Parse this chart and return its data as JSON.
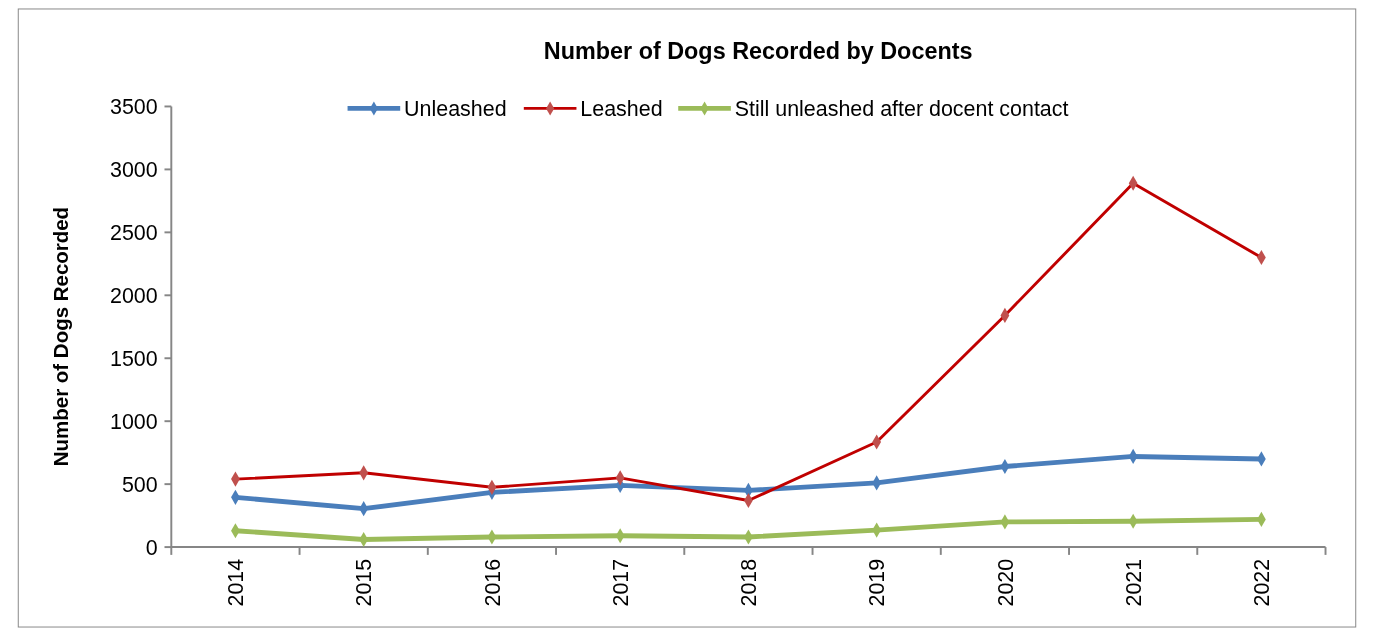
{
  "chart_data": {
    "type": "line",
    "title": "Number of Dogs Recorded by Docents",
    "ylabel": "Number of Dogs Recorded",
    "categories": [
      "2014",
      "2015",
      "2016",
      "2017",
      "2018",
      "2019",
      "2020",
      "2021",
      "2022"
    ],
    "series": [
      {
        "name": "Unleashed",
        "color": "#4a7ebb",
        "values": [
          395,
          305,
          435,
          490,
          450,
          510,
          640,
          720,
          700
        ]
      },
      {
        "name": "Leashed",
        "color": "#c00000",
        "values": [
          540,
          590,
          475,
          550,
          370,
          835,
          1840,
          2890,
          2300
        ]
      },
      {
        "name": "Still unleashed after docent contact",
        "color": "#9bbb59",
        "values": [
          130,
          60,
          80,
          90,
          80,
          135,
          200,
          205,
          220
        ]
      }
    ],
    "ylim": [
      0,
      3500
    ],
    "yticks": [
      0,
      500,
      1000,
      1500,
      2000,
      2500,
      3000,
      3500
    ],
    "grid": false,
    "legend": "top",
    "marker": "diamond",
    "line_style": "solid"
  }
}
